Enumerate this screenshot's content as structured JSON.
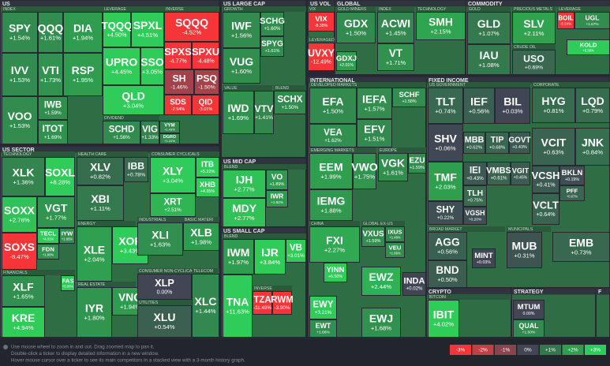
{
  "sections": [
    "US",
    "US SECTOR",
    "US LARGE CAP",
    "US MID CAP",
    "US SMALL CAP",
    "US VOL",
    "GLOBAL",
    "INTERNATIONAL",
    "COMMODITY",
    "FIXED INCOME",
    "CRYPTO",
    "STRATEGY",
    "F"
  ],
  "groups": [
    "INDEX",
    "LEVERAGE",
    "INVERSE",
    "DIVIDEND",
    "TECHNOLOGY",
    "HEALTH CARE",
    "CONSUMER CYCLICALS",
    "FINANCIALS",
    "ENERGY",
    "REAL ESTATE",
    "INDUSTRIALS",
    "BASIC MATERI",
    "CONSUMER NON-CYCLICALS",
    "UTILITIES",
    "TELECOM",
    "GROWTH",
    "VALUE",
    "BLEND",
    "BLEND",
    "BLEND",
    "INVERSE",
    "VIX",
    "LEVERAGED",
    "GOLD MINERS",
    "INDEX",
    "TECHNOLOGY",
    "DEVELOPED MARKETS",
    "EMERGING MARKETS",
    "EUROPE",
    "CHINA",
    "GLOBAL EX-US",
    "GOLD",
    "PRECIOUS METALS",
    "CRUDE OIL",
    "LEVERAGE",
    "US GOVERNMENT",
    "CORPORATE",
    "BROAD MARKET",
    "MUNICIPALS",
    "BITCOIN"
  ],
  "tiles": [
    {
      "ticker": "SPY",
      "change": "+1.54%"
    },
    {
      "ticker": "QQQ",
      "change": "+1.61%"
    },
    {
      "ticker": "DIA",
      "change": "+1.94%"
    },
    {
      "ticker": "IVV",
      "change": "+1.53%"
    },
    {
      "ticker": "VTI",
      "change": "+1.73%"
    },
    {
      "ticker": "RSP",
      "change": "+1.95%"
    },
    {
      "ticker": "VOO",
      "change": "+1.53%"
    },
    {
      "ticker": "IWB",
      "change": "+1.59%"
    },
    {
      "ticker": "ITOT",
      "change": "+1.69%"
    },
    {
      "ticker": "TQQQ",
      "change": "+4.50%"
    },
    {
      "ticker": "SPXL",
      "change": "+4.51%"
    },
    {
      "ticker": "UPRO",
      "change": "+4.45%"
    },
    {
      "ticker": "SSO",
      "change": "+3.05%"
    },
    {
      "ticker": "QLD",
      "change": "+3.04%"
    },
    {
      "ticker": "SCHD",
      "change": "+1.56%"
    },
    {
      "ticker": "VIG",
      "change": "+1.33%"
    },
    {
      "ticker": "SQQQ",
      "change": "-4.52%"
    },
    {
      "ticker": "SPXS",
      "change": "-4.77%"
    },
    {
      "ticker": "SPXU",
      "change": "-4.48%"
    },
    {
      "ticker": "SH",
      "change": "-1.46%"
    },
    {
      "ticker": "PSQ",
      "change": "-1.50%"
    },
    {
      "ticker": "SDS",
      "change": "-2.94%"
    },
    {
      "ticker": "QID",
      "change": "-3.01%"
    },
    {
      "ticker": "VYM",
      "change": "+1.43%"
    },
    {
      "ticker": "DGRO",
      "change": "+1.41%"
    },
    {
      "ticker": "XLK",
      "change": "+1.36%"
    },
    {
      "ticker": "SOXL",
      "change": "+8.28%"
    },
    {
      "ticker": "SOXX",
      "change": "+2.78%"
    },
    {
      "ticker": "VGT",
      "change": "+1.77%"
    },
    {
      "ticker": "SOXS",
      "change": "-8.47%"
    },
    {
      "ticker": "TECL",
      "change": "+4.01%"
    },
    {
      "ticker": "FDN",
      "change": "+1.80%"
    },
    {
      "ticker": "IYW",
      "change": "+1.65%"
    },
    {
      "ticker": "XLF",
      "change": "+1.65%"
    },
    {
      "ticker": "KRE",
      "change": "+4.94%"
    },
    {
      "ticker": "FAS",
      "change": "+5.00%"
    },
    {
      "ticker": "XLV",
      "change": "+0.82%"
    },
    {
      "ticker": "IBB",
      "change": "+0.78%"
    },
    {
      "ticker": "XBI",
      "change": "+1.11%"
    },
    {
      "ticker": "XLE",
      "change": "+2.04%"
    },
    {
      "ticker": "XOP",
      "change": "+3.43%"
    },
    {
      "ticker": "IYR",
      "change": "+1.80%"
    },
    {
      "ticker": "VNQ",
      "change": "+1.94%"
    },
    {
      "ticker": "XLY",
      "change": "+3.04%"
    },
    {
      "ticker": "ITB",
      "change": "+5.22%"
    },
    {
      "ticker": "XHB",
      "change": "+4.55%"
    },
    {
      "ticker": "XRT",
      "change": "+2.51%"
    },
    {
      "ticker": "XLI",
      "change": "+1.63%"
    },
    {
      "ticker": "XLB",
      "change": "+1.98%"
    },
    {
      "ticker": "XLP",
      "change": "0.00%"
    },
    {
      "ticker": "XLU",
      "change": "+0.54%"
    },
    {
      "ticker": "XLC",
      "change": "+1.44%"
    },
    {
      "ticker": "IWF",
      "change": "+1.56%"
    },
    {
      "ticker": "SCHG",
      "change": "+1.60%"
    },
    {
      "ticker": "VUG",
      "change": "+1.60%"
    },
    {
      "ticker": "SPYG",
      "change": "+1.61%"
    },
    {
      "ticker": "IWD",
      "change": "+1.69%"
    },
    {
      "ticker": "VTV",
      "change": "+1.41%"
    },
    {
      "ticker": "SCHX",
      "change": "+1.50%"
    },
    {
      "ticker": "IJH",
      "change": "+2.77%"
    },
    {
      "ticker": "MDY",
      "change": "+2.77%"
    },
    {
      "ticker": "VO",
      "change": "+1.89%"
    },
    {
      "ticker": "IWR",
      "change": "+1.92%"
    },
    {
      "ticker": "IWM",
      "change": "+1.97%"
    },
    {
      "ticker": "IJR",
      "change": "+3.84%"
    },
    {
      "ticker": "VB",
      "change": "+3.01%"
    },
    {
      "ticker": "TNA",
      "change": "+11.63%"
    },
    {
      "ticker": "TZA",
      "change": "-11.49%"
    },
    {
      "ticker": "RWM",
      "change": "-3.90%"
    },
    {
      "ticker": "VIX",
      "change": "-8.38%"
    },
    {
      "ticker": "UVXY",
      "change": "-12.49%"
    },
    {
      "ticker": "GDX",
      "change": "+1.50%"
    },
    {
      "ticker": "GDXJ",
      "change": "+2.01%"
    },
    {
      "ticker": "ACWI",
      "change": "+1.45%"
    },
    {
      "ticker": "VT",
      "change": "+1.71%"
    },
    {
      "ticker": "SMH",
      "change": "+2.15%"
    },
    {
      "ticker": "EFA",
      "change": "+1.50%"
    },
    {
      "ticker": "VEA",
      "change": "+1.62%"
    },
    {
      "ticker": "IEFA",
      "change": "+1.57%"
    },
    {
      "ticker": "EFV",
      "change": "+1.51%"
    },
    {
      "ticker": "SCHF",
      "change": "+1.58%"
    },
    {
      "ticker": "EEM",
      "change": "+1.99%"
    },
    {
      "ticker": "IEMG",
      "change": "+1.88%"
    },
    {
      "ticker": "VWO",
      "change": "+1.75%"
    },
    {
      "ticker": "VGK",
      "change": "+1.61%"
    },
    {
      "ticker": "EZU",
      "change": "+1.59%"
    },
    {
      "ticker": "FXI",
      "change": "+2.27%"
    },
    {
      "ticker": "YINN",
      "change": "+6.50%"
    },
    {
      "ticker": "VXUS",
      "change": "+1.59%"
    },
    {
      "ticker": "IXUS",
      "change": "+1.48%"
    },
    {
      "ticker": "VEU",
      "change": "+1.66%"
    },
    {
      "ticker": "EWZ",
      "change": "+2.44%"
    },
    {
      "ticker": "INDA",
      "change": "+0.02%"
    },
    {
      "ticker": "EWY",
      "change": "+3.21%"
    },
    {
      "ticker": "EWT",
      "change": "+1.66%"
    },
    {
      "ticker": "EWJ",
      "change": "+1.68%"
    },
    {
      "ticker": "GLD",
      "change": "+1.07%"
    },
    {
      "ticker": "IAU",
      "change": "+1.08%"
    },
    {
      "ticker": "SLV",
      "change": "+2.11%"
    },
    {
      "ticker": "USO",
      "change": "+0.69%"
    },
    {
      "ticker": "BOIL",
      "change": "-5.24%"
    },
    {
      "ticker": "UGL",
      "change": "+1.57%"
    },
    {
      "ticker": "KOLD",
      "change": "+5.36%"
    },
    {
      "ticker": "TLT",
      "change": "+0.74%"
    },
    {
      "ticker": "IEF",
      "change": "+0.56%"
    },
    {
      "ticker": "BIL",
      "change": "+0.03%"
    },
    {
      "ticker": "SHV",
      "change": "+0.06%"
    },
    {
      "ticker": "MBB",
      "change": "+0.62%"
    },
    {
      "ticker": "TIP",
      "change": "+0.68%"
    },
    {
      "ticker": "GOVT",
      "change": "+0.43%"
    },
    {
      "ticker": "TMF",
      "change": "+2.03%"
    },
    {
      "ticker": "IEI",
      "change": "+0.43%"
    },
    {
      "ticker": "VMBS",
      "change": "+0.61%"
    },
    {
      "ticker": "VGIT",
      "change": "+0.45%"
    },
    {
      "ticker": "TLH",
      "change": "+0.75%"
    },
    {
      "ticker": "SHY",
      "change": "+0.22%"
    },
    {
      "ticker": "VGSH",
      "change": "+0.20%"
    },
    {
      "ticker": "HYG",
      "change": "+0.81%"
    },
    {
      "ticker": "LQD",
      "change": "+0.79%"
    },
    {
      "ticker": "VCIT",
      "change": "+0.63%"
    },
    {
      "ticker": "JNK",
      "change": "+0.84%"
    },
    {
      "ticker": "VCSH",
      "change": "+0.41%"
    },
    {
      "ticker": "BKLN",
      "change": "+0.19%"
    },
    {
      "ticker": "PFF",
      "change": "+0.67%"
    },
    {
      "ticker": "VCLT",
      "change": "+0.64%"
    },
    {
      "ticker": "AGG",
      "change": "+0.56%"
    },
    {
      "ticker": "BND",
      "change": "+0.50%"
    },
    {
      "ticker": "MINT",
      "change": "+0.03%"
    },
    {
      "ticker": "MUB",
      "change": "+0.31%"
    },
    {
      "ticker": "EMB",
      "change": "+0.73%"
    },
    {
      "ticker": "IBIT",
      "change": "+4.02%"
    },
    {
      "ticker": "MTUM",
      "change": "0.00%"
    },
    {
      "ticker": "QUAL",
      "change": "+1.50%"
    }
  ],
  "footer": {
    "lines": [
      "Use mouse wheel to zoom in and out. Drag zoomed map to pan it.",
      "Double-click a ticker to display detailed information in a new window.",
      "Hover mouse cursor over a ticker to see its main competitors in a stacked view with a 3-month history graph."
    ],
    "legend": [
      "-3%",
      "-2%",
      "-1%",
      "0%",
      "+1%",
      "+2%",
      "+3%"
    ]
  }
}
